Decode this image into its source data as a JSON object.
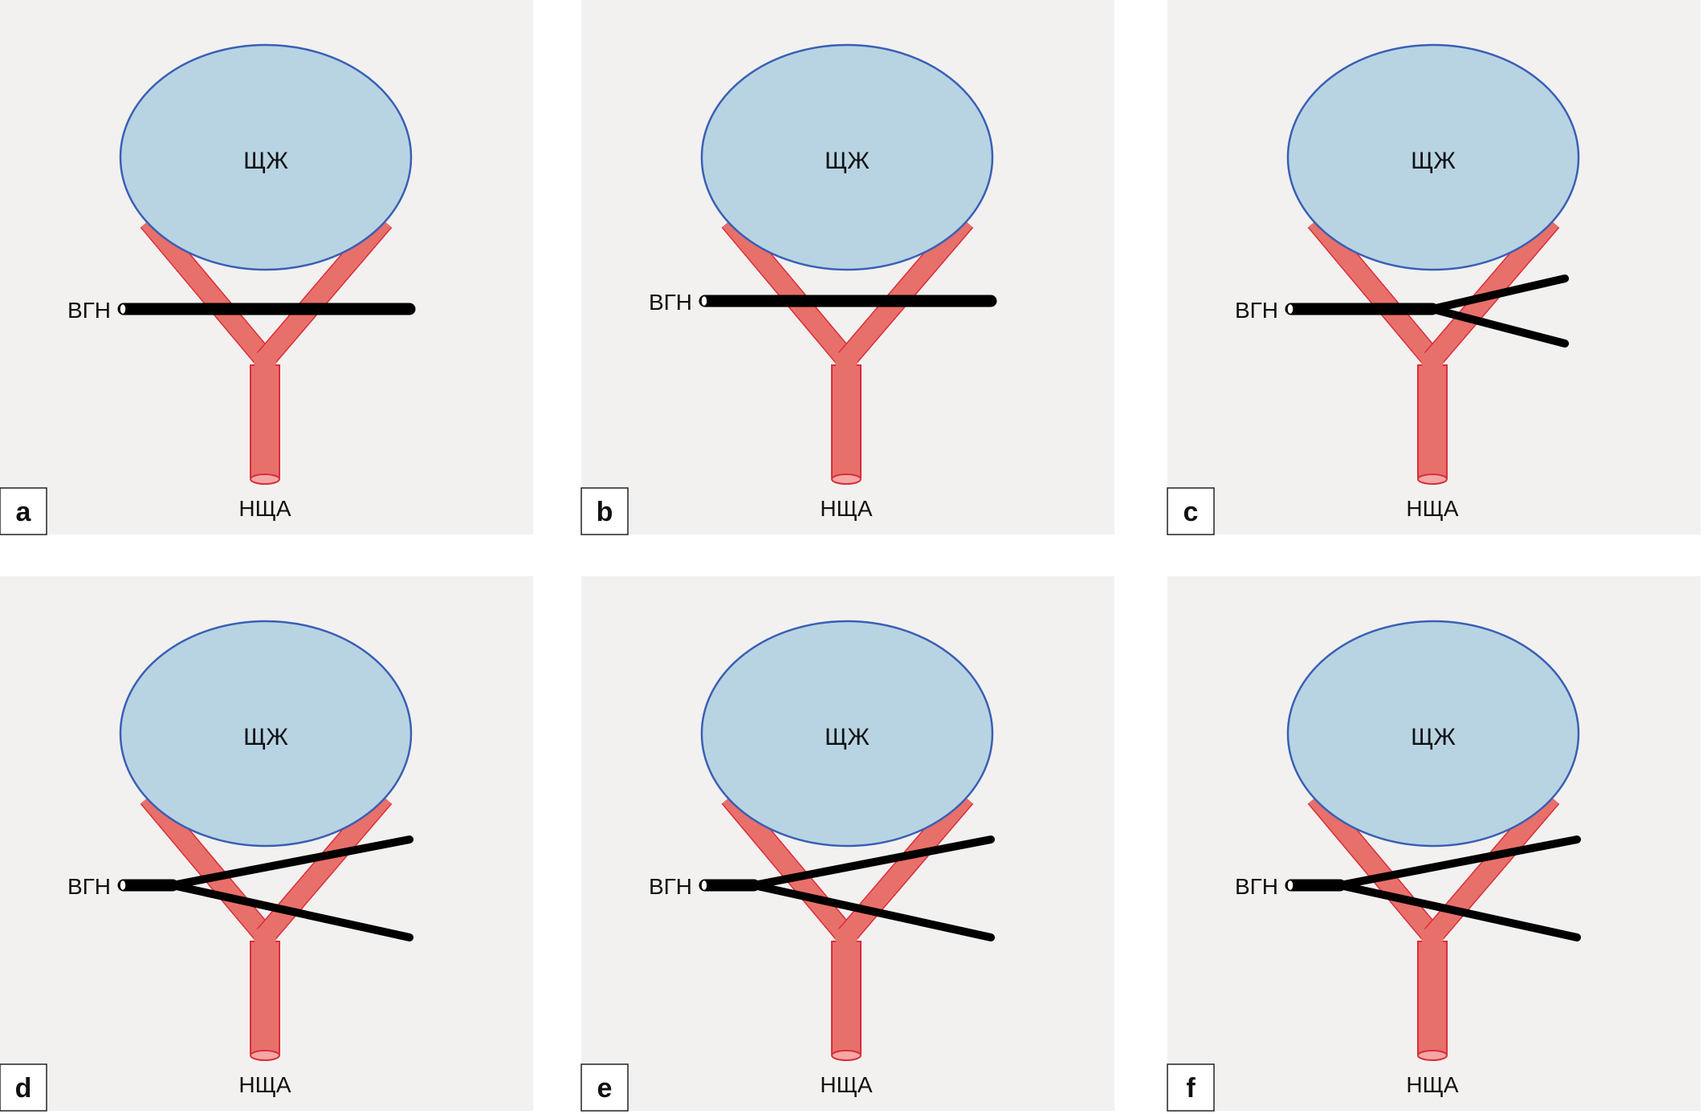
{
  "labels": {
    "gland": "ЩЖ",
    "nerve": "ВГН",
    "artery": "НЩА"
  },
  "colors": {
    "background": "#f2f1f0",
    "gland_fill": "#b8d4e3",
    "gland_stroke": "#3a5fb5",
    "artery_fill": "#e8706a",
    "artery_stroke": "#d92e3a",
    "nerve": "#000000"
  },
  "panels": [
    {
      "letter": "a",
      "nerve_shape": "straight",
      "nerve_level": "low"
    },
    {
      "letter": "b",
      "nerve_shape": "straight",
      "nerve_level": "high"
    },
    {
      "letter": "c",
      "nerve_shape": "forked-after-artery",
      "nerve_level": "low"
    },
    {
      "letter": "d",
      "nerve_shape": "forked-before-artery",
      "nerve_level": "low"
    },
    {
      "letter": "e",
      "nerve_shape": "forked-before-artery",
      "nerve_level": "low"
    },
    {
      "letter": "f",
      "nerve_shape": "forked-before-artery",
      "nerve_level": "low"
    }
  ]
}
